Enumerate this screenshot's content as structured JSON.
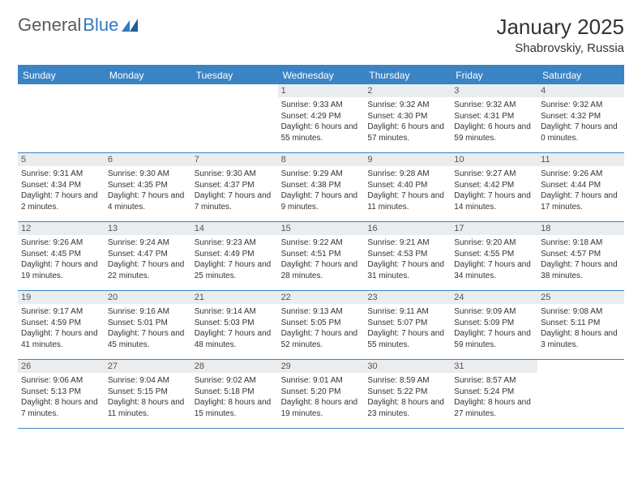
{
  "logo": {
    "text1": "General",
    "text2": "Blue"
  },
  "title": "January 2025",
  "location": "Shabrovskiy, Russia",
  "colors": {
    "header_bg": "#3a84c5",
    "header_text": "#ffffff",
    "date_bg": "#e9edf0",
    "text": "#333333",
    "logo_blue": "#2f7ac0"
  },
  "fonts": {
    "title_size": 26,
    "location_size": 15,
    "dayhead_size": 12,
    "date_size": 11,
    "info_size": 10
  },
  "day_names": [
    "Sunday",
    "Monday",
    "Tuesday",
    "Wednesday",
    "Thursday",
    "Friday",
    "Saturday"
  ],
  "weeks": [
    [
      {
        "date": "",
        "sunrise": "",
        "sunset": "",
        "daylight": ""
      },
      {
        "date": "",
        "sunrise": "",
        "sunset": "",
        "daylight": ""
      },
      {
        "date": "",
        "sunrise": "",
        "sunset": "",
        "daylight": ""
      },
      {
        "date": "1",
        "sunrise": "Sunrise: 9:33 AM",
        "sunset": "Sunset: 4:29 PM",
        "daylight": "Daylight: 6 hours and 55 minutes."
      },
      {
        "date": "2",
        "sunrise": "Sunrise: 9:32 AM",
        "sunset": "Sunset: 4:30 PM",
        "daylight": "Daylight: 6 hours and 57 minutes."
      },
      {
        "date": "3",
        "sunrise": "Sunrise: 9:32 AM",
        "sunset": "Sunset: 4:31 PM",
        "daylight": "Daylight: 6 hours and 59 minutes."
      },
      {
        "date": "4",
        "sunrise": "Sunrise: 9:32 AM",
        "sunset": "Sunset: 4:32 PM",
        "daylight": "Daylight: 7 hours and 0 minutes."
      }
    ],
    [
      {
        "date": "5",
        "sunrise": "Sunrise: 9:31 AM",
        "sunset": "Sunset: 4:34 PM",
        "daylight": "Daylight: 7 hours and 2 minutes."
      },
      {
        "date": "6",
        "sunrise": "Sunrise: 9:30 AM",
        "sunset": "Sunset: 4:35 PM",
        "daylight": "Daylight: 7 hours and 4 minutes."
      },
      {
        "date": "7",
        "sunrise": "Sunrise: 9:30 AM",
        "sunset": "Sunset: 4:37 PM",
        "daylight": "Daylight: 7 hours and 7 minutes."
      },
      {
        "date": "8",
        "sunrise": "Sunrise: 9:29 AM",
        "sunset": "Sunset: 4:38 PM",
        "daylight": "Daylight: 7 hours and 9 minutes."
      },
      {
        "date": "9",
        "sunrise": "Sunrise: 9:28 AM",
        "sunset": "Sunset: 4:40 PM",
        "daylight": "Daylight: 7 hours and 11 minutes."
      },
      {
        "date": "10",
        "sunrise": "Sunrise: 9:27 AM",
        "sunset": "Sunset: 4:42 PM",
        "daylight": "Daylight: 7 hours and 14 minutes."
      },
      {
        "date": "11",
        "sunrise": "Sunrise: 9:26 AM",
        "sunset": "Sunset: 4:44 PM",
        "daylight": "Daylight: 7 hours and 17 minutes."
      }
    ],
    [
      {
        "date": "12",
        "sunrise": "Sunrise: 9:26 AM",
        "sunset": "Sunset: 4:45 PM",
        "daylight": "Daylight: 7 hours and 19 minutes."
      },
      {
        "date": "13",
        "sunrise": "Sunrise: 9:24 AM",
        "sunset": "Sunset: 4:47 PM",
        "daylight": "Daylight: 7 hours and 22 minutes."
      },
      {
        "date": "14",
        "sunrise": "Sunrise: 9:23 AM",
        "sunset": "Sunset: 4:49 PM",
        "daylight": "Daylight: 7 hours and 25 minutes."
      },
      {
        "date": "15",
        "sunrise": "Sunrise: 9:22 AM",
        "sunset": "Sunset: 4:51 PM",
        "daylight": "Daylight: 7 hours and 28 minutes."
      },
      {
        "date": "16",
        "sunrise": "Sunrise: 9:21 AM",
        "sunset": "Sunset: 4:53 PM",
        "daylight": "Daylight: 7 hours and 31 minutes."
      },
      {
        "date": "17",
        "sunrise": "Sunrise: 9:20 AM",
        "sunset": "Sunset: 4:55 PM",
        "daylight": "Daylight: 7 hours and 34 minutes."
      },
      {
        "date": "18",
        "sunrise": "Sunrise: 9:18 AM",
        "sunset": "Sunset: 4:57 PM",
        "daylight": "Daylight: 7 hours and 38 minutes."
      }
    ],
    [
      {
        "date": "19",
        "sunrise": "Sunrise: 9:17 AM",
        "sunset": "Sunset: 4:59 PM",
        "daylight": "Daylight: 7 hours and 41 minutes."
      },
      {
        "date": "20",
        "sunrise": "Sunrise: 9:16 AM",
        "sunset": "Sunset: 5:01 PM",
        "daylight": "Daylight: 7 hours and 45 minutes."
      },
      {
        "date": "21",
        "sunrise": "Sunrise: 9:14 AM",
        "sunset": "Sunset: 5:03 PM",
        "daylight": "Daylight: 7 hours and 48 minutes."
      },
      {
        "date": "22",
        "sunrise": "Sunrise: 9:13 AM",
        "sunset": "Sunset: 5:05 PM",
        "daylight": "Daylight: 7 hours and 52 minutes."
      },
      {
        "date": "23",
        "sunrise": "Sunrise: 9:11 AM",
        "sunset": "Sunset: 5:07 PM",
        "daylight": "Daylight: 7 hours and 55 minutes."
      },
      {
        "date": "24",
        "sunrise": "Sunrise: 9:09 AM",
        "sunset": "Sunset: 5:09 PM",
        "daylight": "Daylight: 7 hours and 59 minutes."
      },
      {
        "date": "25",
        "sunrise": "Sunrise: 9:08 AM",
        "sunset": "Sunset: 5:11 PM",
        "daylight": "Daylight: 8 hours and 3 minutes."
      }
    ],
    [
      {
        "date": "26",
        "sunrise": "Sunrise: 9:06 AM",
        "sunset": "Sunset: 5:13 PM",
        "daylight": "Daylight: 8 hours and 7 minutes."
      },
      {
        "date": "27",
        "sunrise": "Sunrise: 9:04 AM",
        "sunset": "Sunset: 5:15 PM",
        "daylight": "Daylight: 8 hours and 11 minutes."
      },
      {
        "date": "28",
        "sunrise": "Sunrise: 9:02 AM",
        "sunset": "Sunset: 5:18 PM",
        "daylight": "Daylight: 8 hours and 15 minutes."
      },
      {
        "date": "29",
        "sunrise": "Sunrise: 9:01 AM",
        "sunset": "Sunset: 5:20 PM",
        "daylight": "Daylight: 8 hours and 19 minutes."
      },
      {
        "date": "30",
        "sunrise": "Sunrise: 8:59 AM",
        "sunset": "Sunset: 5:22 PM",
        "daylight": "Daylight: 8 hours and 23 minutes."
      },
      {
        "date": "31",
        "sunrise": "Sunrise: 8:57 AM",
        "sunset": "Sunset: 5:24 PM",
        "daylight": "Daylight: 8 hours and 27 minutes."
      },
      {
        "date": "",
        "sunrise": "",
        "sunset": "",
        "daylight": ""
      }
    ]
  ]
}
